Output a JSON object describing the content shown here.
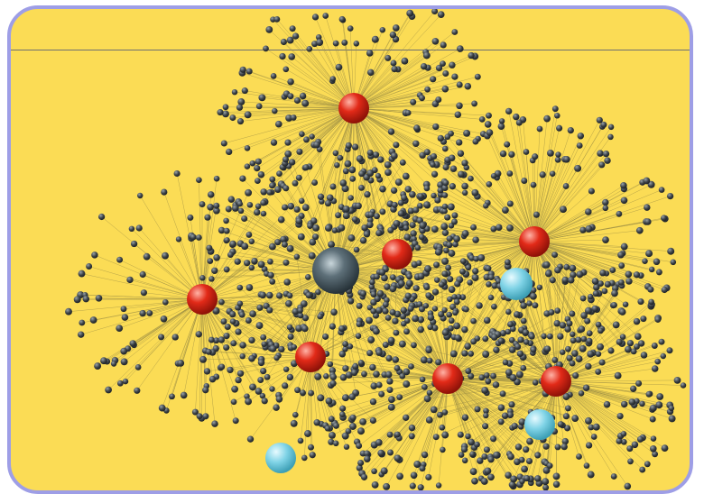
{
  "colors": {
    "background": "#fbdc55",
    "frame_border": "#9e9ee6",
    "edge": "#9c8f45",
    "leaf_node": "#3b4146",
    "hub_node": "#e22a18",
    "cyan_node": "#7fd3e6",
    "central_node": "#4a5b63",
    "top_rule": "#6f6f6f"
  },
  "node_types": [
    "central-hub",
    "hub",
    "leaf",
    "peripheral"
  ]
}
